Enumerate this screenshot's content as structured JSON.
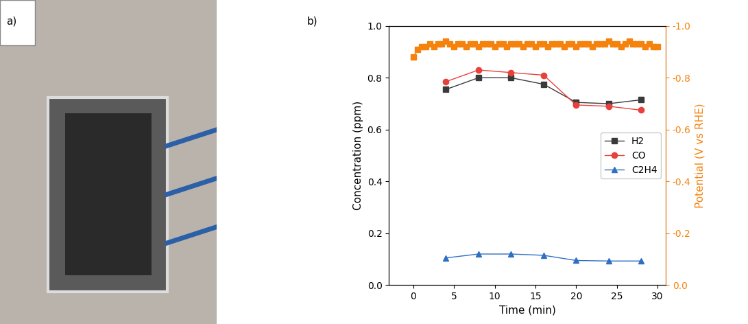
{
  "panel_labels": [
    "a)",
    "b)"
  ],
  "chart_data": {
    "type": "line",
    "x_label": "Time (min)",
    "y_label": "Concentration (ppm)",
    "y2_label": "Potential (V vs RHE)",
    "xlim": [
      -3,
      31
    ],
    "xticks": [
      0,
      5,
      10,
      15,
      20,
      25,
      30
    ],
    "ylim": [
      0.0,
      1.0
    ],
    "yticks": [
      {
        "value": 0.0,
        "label": "0.0"
      },
      0.2,
      0.4,
      0.6,
      0.8,
      {
        "value": 1.0,
        "label": "1.0"
      }
    ],
    "y2lim": [
      0.0,
      -1.0
    ],
    "y2ticks": [
      {
        "value": 0.0,
        "label": "0.0"
      },
      -0.2,
      -0.4,
      -0.6,
      -0.8,
      {
        "value": -1.0,
        "label": "-1.0"
      }
    ],
    "grid": false,
    "legend": "center right",
    "series": [
      {
        "name": "H2",
        "color": "#3a3a3a",
        "marker": "square",
        "line_style": "solid",
        "x": [
          4,
          8,
          12,
          16,
          20,
          24,
          28
        ],
        "values": [
          0.755,
          0.8,
          0.8,
          0.775,
          0.705,
          0.7,
          0.715
        ]
      },
      {
        "name": "CO",
        "color": "#e8413c",
        "marker": "circle",
        "line_style": "solid",
        "x": [
          4,
          8,
          12,
          16,
          20,
          24,
          28
        ],
        "values": [
          0.785,
          0.83,
          0.82,
          0.81,
          0.695,
          0.69,
          0.675
        ]
      },
      {
        "name": "C2H4",
        "color": "#2f6fc4",
        "marker": "triangle",
        "line_style": "solid",
        "x": [
          4,
          8,
          12,
          16,
          20,
          24,
          28
        ],
        "values": [
          0.105,
          0.12,
          0.12,
          0.115,
          0.095,
          0.093,
          0.093
        ]
      },
      {
        "axis": "y2",
        "color": "#f5820d",
        "marker": "square",
        "line_style": "solid",
        "x": [
          0,
          0.5,
          1,
          1.5,
          2,
          2.5,
          3,
          3.5,
          4,
          4.5,
          5,
          5.5,
          6,
          6.5,
          7,
          7.5,
          8,
          8.5,
          9,
          9.5,
          10,
          10.5,
          11,
          11.5,
          12,
          12.5,
          13,
          13.5,
          14,
          14.5,
          15,
          15.5,
          16,
          16.5,
          17,
          17.5,
          18,
          18.5,
          19,
          19.5,
          20,
          20.5,
          21,
          21.5,
          22,
          22.5,
          23,
          23.5,
          24,
          24.5,
          25,
          25.5,
          26,
          26.5,
          27,
          27.5,
          28,
          28.5,
          29,
          29.5,
          30
        ],
        "values": [
          -0.88,
          -0.91,
          -0.92,
          -0.92,
          -0.93,
          -0.92,
          -0.93,
          -0.93,
          -0.94,
          -0.93,
          -0.92,
          -0.93,
          -0.93,
          -0.92,
          -0.93,
          -0.93,
          -0.92,
          -0.93,
          -0.93,
          -0.93,
          -0.92,
          -0.93,
          -0.93,
          -0.92,
          -0.93,
          -0.93,
          -0.93,
          -0.92,
          -0.93,
          -0.93,
          -0.92,
          -0.93,
          -0.93,
          -0.92,
          -0.93,
          -0.93,
          -0.93,
          -0.92,
          -0.93,
          -0.93,
          -0.92,
          -0.93,
          -0.93,
          -0.93,
          -0.92,
          -0.93,
          -0.93,
          -0.93,
          -0.94,
          -0.93,
          -0.93,
          -0.92,
          -0.93,
          -0.94,
          -0.93,
          -0.93,
          -0.93,
          -0.92,
          -0.93,
          -0.92,
          -0.92
        ]
      }
    ]
  }
}
